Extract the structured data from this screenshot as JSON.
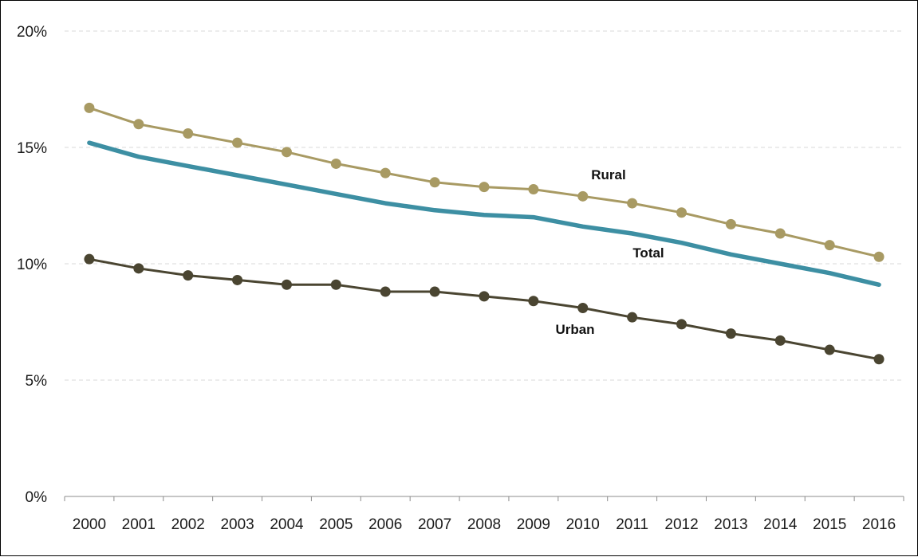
{
  "chart_data": {
    "type": "line",
    "title": "",
    "xlabel": "",
    "ylabel": "",
    "x": [
      "2000",
      "2001",
      "2002",
      "2003",
      "2004",
      "2005",
      "2006",
      "2007",
      "2008",
      "2009",
      "2010",
      "2011",
      "2012",
      "2013",
      "2014",
      "2015",
      "2016"
    ],
    "ylim": [
      0,
      20
    ],
    "yticks": [
      0,
      5,
      10,
      15,
      20
    ],
    "ytick_labels": [
      "0%",
      "5%",
      "10%",
      "15%",
      "20%"
    ],
    "y_unit": "%",
    "grid": "horizontal dashed",
    "legend": "inline labels",
    "series": [
      {
        "name": "Rural",
        "color": "#a89a63",
        "markers": true,
        "values": [
          16.7,
          16.0,
          15.6,
          15.2,
          14.8,
          14.3,
          13.9,
          13.5,
          13.3,
          13.2,
          12.9,
          12.6,
          12.2,
          11.7,
          11.3,
          10.8,
          10.3
        ]
      },
      {
        "name": "Total",
        "color": "#3d8fa3",
        "markers": false,
        "values": [
          15.2,
          14.6,
          14.2,
          13.8,
          13.4,
          13.0,
          12.6,
          12.3,
          12.1,
          12.0,
          11.6,
          11.3,
          10.9,
          10.4,
          10.0,
          9.6,
          9.1
        ]
      },
      {
        "name": "Urban",
        "color": "#4a4531",
        "markers": true,
        "values": [
          10.2,
          9.8,
          9.5,
          9.3,
          9.1,
          9.1,
          8.8,
          8.8,
          8.6,
          8.4,
          8.1,
          7.7,
          7.4,
          7.0,
          6.7,
          6.3,
          5.9
        ]
      }
    ]
  }
}
